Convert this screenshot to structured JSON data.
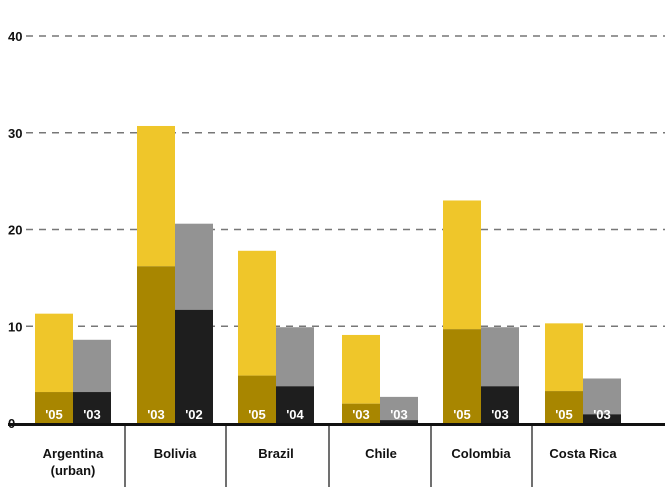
{
  "chart_data": {
    "type": "bar",
    "stacked": true,
    "title": "",
    "xlabel": "",
    "ylabel": "",
    "ylim": [
      0,
      40
    ],
    "yticks": [
      0,
      10,
      20,
      30,
      40
    ],
    "ytick_labels": [
      "0",
      "10",
      "20",
      "30",
      "40"
    ],
    "grid": "dashed horizontal",
    "categories": [
      "Argentina (urban)",
      "Bolivia",
      "Brazil",
      "Chile",
      "Colombia",
      "Costa Rica"
    ],
    "groups": [
      {
        "category": "Argentina (urban)",
        "bars": [
          {
            "year": "'05",
            "series": "yellow",
            "top": 11.3,
            "dark": 3.2
          },
          {
            "year": "'03",
            "series": "gray",
            "top": 8.6,
            "dark": 3.2
          }
        ]
      },
      {
        "category": "Bolivia",
        "bars": [
          {
            "year": "'03",
            "series": "yellow",
            "top": 30.7,
            "dark": 16.2
          },
          {
            "year": "'02",
            "series": "gray",
            "top": 20.6,
            "dark": 11.7
          }
        ]
      },
      {
        "category": "Brazil",
        "bars": [
          {
            "year": "'05",
            "series": "yellow",
            "top": 17.8,
            "dark": 4.9
          },
          {
            "year": "'04",
            "series": "gray",
            "top": 9.9,
            "dark": 3.8
          }
        ]
      },
      {
        "category": "Chile",
        "bars": [
          {
            "year": "'03",
            "series": "yellow",
            "top": 9.1,
            "dark": 2.0
          },
          {
            "year": "'03",
            "series": "gray",
            "top": 2.7,
            "dark": 0.3
          }
        ]
      },
      {
        "category": "Colombia",
        "bars": [
          {
            "year": "'05",
            "series": "yellow",
            "top": 23.0,
            "dark": 9.7
          },
          {
            "year": "'03",
            "series": "gray",
            "top": 9.9,
            "dark": 3.8
          }
        ]
      },
      {
        "category": "Costa Rica",
        "bars": [
          {
            "year": "'05",
            "series": "yellow",
            "top": 10.3,
            "dark": 3.3
          },
          {
            "year": "'03",
            "series": "gray",
            "top": 4.6,
            "dark": 0.9
          }
        ]
      }
    ],
    "colors": {
      "yellow_top": "#efc62a",
      "yellow_bottom": "#a88600",
      "gray_top": "#939393",
      "gray_bottom": "#1e1e1e",
      "grid": "#777777",
      "axis": "#111111"
    }
  }
}
